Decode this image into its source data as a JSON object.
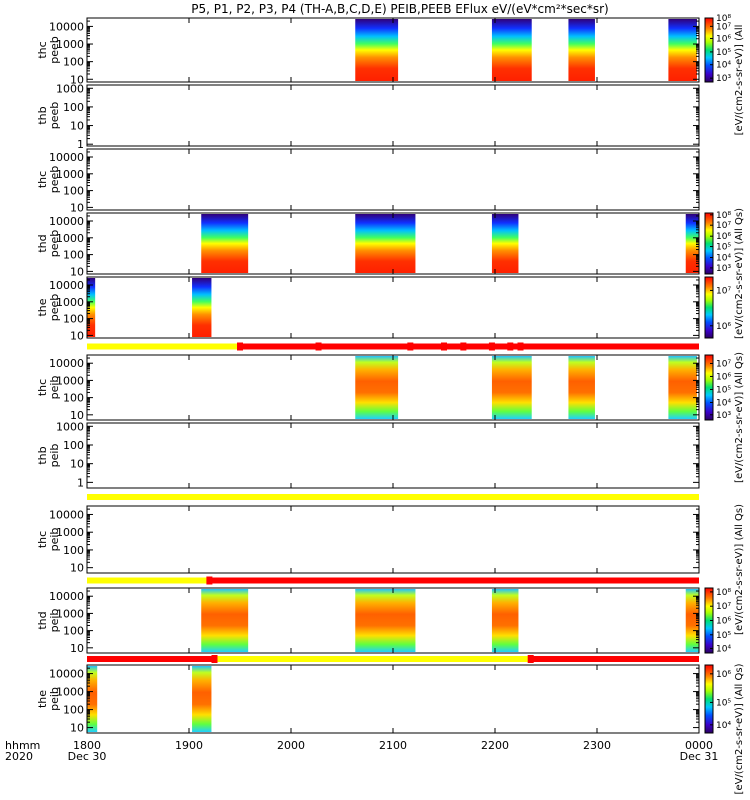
{
  "chart_data": {
    "type": "heatmap",
    "title": "P5, P1, P2, P3, P4 (TH-A,B,C,D,E) PEIB,PEEB EFlux eV/(eV*cm²*sec*sr)",
    "x_title": [
      "hhmm",
      "2020"
    ],
    "x_range": [
      "2020-12-30 18:00",
      "2020-12-31 00:00"
    ],
    "x_ticks": [
      {
        "t": 0,
        "label": "1800",
        "sub": "Dec 30"
      },
      {
        "t": 1,
        "label": "1900",
        "sub": ""
      },
      {
        "t": 2,
        "label": "2000",
        "sub": ""
      },
      {
        "t": 3,
        "label": "2100",
        "sub": ""
      },
      {
        "t": 4,
        "label": "2200",
        "sub": ""
      },
      {
        "t": 5,
        "label": "2300",
        "sub": ""
      },
      {
        "t": 6,
        "label": "0000",
        "sub": "Dec 31"
      }
    ],
    "y_scale": "log",
    "colorbar_unit": "[eV/(cm2-s-sr-eV)] (All Qs)",
    "colorbar_unit_upper": "[eV/(cm2-s-sr-eV)] (All",
    "panels": [
      {
        "name": "thc peeb",
        "ylabels": [
          "thc",
          "peeb"
        ],
        "ylim": [
          7,
          30000
        ],
        "yticks": [
          {
            "v": 10,
            "l": "10"
          },
          {
            "v": 100,
            "l": "100"
          },
          {
            "v": 1000,
            "l": "1000"
          },
          {
            "v": 10000,
            "l": "10000"
          }
        ],
        "intervals": [
          [
            2.63,
            3.05
          ],
          [
            3.97,
            4.36
          ],
          [
            4.72,
            4.98
          ],
          [
            5.7,
            5.98
          ]
        ],
        "cbar": {
          "ticks": [
            {
              "p": 0.06,
              "l": "10³"
            },
            {
              "p": 0.27,
              "l": "10⁴"
            },
            {
              "p": 0.47,
              "l": "10⁵"
            },
            {
              "p": 0.68,
              "l": "10⁶"
            },
            {
              "p": 0.87,
              "l": "10⁷"
            },
            {
              "p": 1.0,
              "l": "10⁸"
            }
          ]
        }
      },
      {
        "name": "thb peeb",
        "ylabels": [
          "thb",
          "peeb"
        ],
        "ylim": [
          0.8,
          1500
        ],
        "yticks": [
          {
            "v": 1,
            "l": "1"
          },
          {
            "v": 10,
            "l": "10"
          },
          {
            "v": 100,
            "l": "100"
          },
          {
            "v": 1000,
            "l": "1000"
          }
        ],
        "intervals": []
      },
      {
        "name": "thc peeb",
        "ylabels": [
          "thc",
          "peeb"
        ],
        "ylim": [
          7,
          30000
        ],
        "yticks": [
          {
            "v": 10,
            "l": "10"
          },
          {
            "v": 100,
            "l": "100"
          },
          {
            "v": 1000,
            "l": "1000"
          },
          {
            "v": 10000,
            "l": "10000"
          }
        ],
        "intervals": []
      },
      {
        "name": "thd peeb",
        "ylabels": [
          "thd",
          "peeb"
        ],
        "ylim": [
          7,
          30000
        ],
        "yticks": [
          {
            "v": 10,
            "l": "10"
          },
          {
            "v": 100,
            "l": "100"
          },
          {
            "v": 1000,
            "l": "1000"
          },
          {
            "v": 10000,
            "l": "10000"
          }
        ],
        "intervals": [
          [
            1.12,
            1.58
          ],
          [
            2.63,
            3.22
          ],
          [
            3.97,
            4.23
          ],
          [
            5.87,
            6.0
          ]
        ],
        "cbar": {
          "ticks": [
            {
              "p": 0.1,
              "l": "10³"
            },
            {
              "p": 0.27,
              "l": "10⁴"
            },
            {
              "p": 0.45,
              "l": "10⁵"
            },
            {
              "p": 0.62,
              "l": "10⁶"
            },
            {
              "p": 0.8,
              "l": "10⁷"
            },
            {
              "p": 0.97,
              "l": "10⁸"
            }
          ]
        }
      },
      {
        "name": "the peeb",
        "ylabels": [
          "the",
          "peeb"
        ],
        "ylim": [
          7,
          30000
        ],
        "yticks": [
          {
            "v": 10,
            "l": "10"
          },
          {
            "v": 100,
            "l": "100"
          },
          {
            "v": 1000,
            "l": "1000"
          },
          {
            "v": 10000,
            "l": "10000"
          }
        ],
        "intervals": [
          [
            0.0,
            0.08
          ],
          [
            1.03,
            1.22
          ]
        ],
        "cbar": {
          "ticks": [
            {
              "p": 0.2,
              "l": "10⁶"
            },
            {
              "p": 0.78,
              "l": "10⁷"
            }
          ]
        }
      },
      {
        "name": "thc peib",
        "ylabels": [
          "thc",
          "peib"
        ],
        "ylim": [
          5,
          30000
        ],
        "yticks": [
          {
            "v": 10,
            "l": "10"
          },
          {
            "v": 100,
            "l": "100"
          },
          {
            "v": 1000,
            "l": "1000"
          },
          {
            "v": 10000,
            "l": "10000"
          }
        ],
        "intervals": [
          [
            2.63,
            3.05
          ],
          [
            3.97,
            4.36
          ],
          [
            4.72,
            4.98
          ],
          [
            5.7,
            5.98
          ]
        ],
        "cbar": {
          "ticks": [
            {
              "p": 0.08,
              "l": "10³"
            },
            {
              "p": 0.27,
              "l": "10⁴"
            },
            {
              "p": 0.47,
              "l": "10⁵"
            },
            {
              "p": 0.67,
              "l": "10⁶"
            },
            {
              "p": 0.87,
              "l": "10⁷"
            }
          ]
        }
      },
      {
        "name": "thb peib",
        "ylabels": [
          "thb",
          "peib"
        ],
        "ylim": [
          0.5,
          1500
        ],
        "yticks": [
          {
            "v": 1,
            "l": "1"
          },
          {
            "v": 10,
            "l": "10"
          },
          {
            "v": 100,
            "l": "100"
          },
          {
            "v": 1000,
            "l": "1000"
          }
        ],
        "intervals": []
      },
      {
        "name": "thc peib",
        "ylabels": [
          "thc",
          "peib"
        ],
        "ylim": [
          5,
          30000
        ],
        "yticks": [
          {
            "v": 10,
            "l": "10"
          },
          {
            "v": 100,
            "l": "100"
          },
          {
            "v": 1000,
            "l": "1000"
          },
          {
            "v": 10000,
            "l": "10000"
          }
        ],
        "intervals": []
      },
      {
        "name": "thd peib",
        "ylabels": [
          "thd",
          "peib"
        ],
        "ylim": [
          5,
          30000
        ],
        "yticks": [
          {
            "v": 10,
            "l": "10"
          },
          {
            "v": 100,
            "l": "100"
          },
          {
            "v": 1000,
            "l": "1000"
          },
          {
            "v": 10000,
            "l": "10000"
          }
        ],
        "intervals": [
          [
            1.12,
            1.58
          ],
          [
            2.63,
            3.22
          ],
          [
            3.97,
            4.23
          ],
          [
            5.87,
            6.0
          ]
        ],
        "cbar": {
          "ticks": [
            {
              "p": 0.07,
              "l": "10⁴"
            },
            {
              "p": 0.28,
              "l": "10⁵"
            },
            {
              "p": 0.5,
              "l": "10⁶"
            },
            {
              "p": 0.72,
              "l": "10⁷"
            },
            {
              "p": 0.94,
              "l": "10⁸"
            }
          ]
        }
      },
      {
        "name": "the peib",
        "ylabels": [
          "the",
          "peib"
        ],
        "ylim": [
          5,
          30000
        ],
        "yticks": [
          {
            "v": 10,
            "l": "10"
          },
          {
            "v": 100,
            "l": "100"
          },
          {
            "v": 1000,
            "l": "1000"
          },
          {
            "v": 10000,
            "l": "10000"
          }
        ],
        "intervals": [
          [
            0.0,
            0.1
          ],
          [
            1.03,
            1.22
          ]
        ],
        "cbar": {
          "ticks": [
            {
              "p": 0.12,
              "l": "10⁴"
            },
            {
              "p": 0.45,
              "l": "10⁵"
            },
            {
              "p": 0.87,
              "l": "10⁶"
            }
          ]
        }
      }
    ],
    "status_bars": [
      {
        "after_panel": 4,
        "segments": [
          {
            "from": 0,
            "to": 1.5,
            "color": "#ffff00"
          },
          {
            "from": 1.5,
            "to": 6,
            "color": "#ff0000"
          }
        ],
        "markers": [
          1.5,
          2.27,
          3.17,
          3.5,
          3.69,
          3.97,
          4.15,
          4.25
        ]
      },
      {
        "after_panel": 6,
        "segments": [
          {
            "from": 0,
            "to": 6,
            "color": "#ffff00"
          }
        ],
        "markers": []
      },
      {
        "after_panel": 7,
        "segments": [
          {
            "from": 0,
            "to": 1.2,
            "color": "#ffff00"
          },
          {
            "from": 1.2,
            "to": 6,
            "color": "#ff0000"
          }
        ],
        "markers": [
          1.2
        ]
      },
      {
        "after_panel": 8,
        "segments": [
          {
            "from": 0,
            "to": 1.25,
            "color": "#ff0000"
          },
          {
            "from": 1.25,
            "to": 4.35,
            "color": "#ffff00"
          },
          {
            "from": 4.35,
            "to": 6,
            "color": "#ff0000"
          }
        ],
        "markers": [
          1.25,
          4.35
        ]
      }
    ]
  }
}
